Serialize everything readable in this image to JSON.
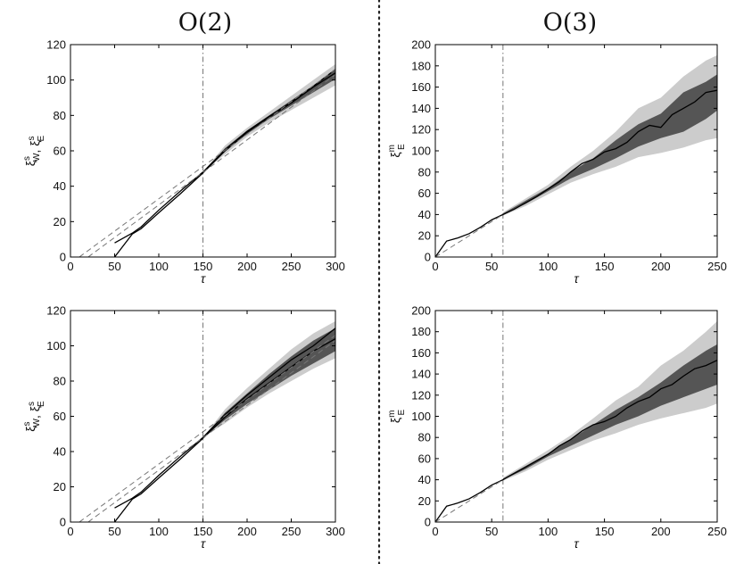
{
  "page": {
    "title_left": "O(2)",
    "title_right": "O(3)"
  },
  "chart_data": [
    {
      "type": "line",
      "panel": "top-left",
      "xlabel": "τ",
      "ylabel_main": "ξ",
      "ylabel_parts": [
        {
          "base": "ξ",
          "sup": "s",
          "sub": "W"
        },
        {
          "base": "ξ",
          "sup": "s",
          "sub": "E"
        }
      ],
      "xlim": [
        0,
        300
      ],
      "ylim": [
        0,
        120
      ],
      "xticks": [
        0,
        50,
        100,
        150,
        200,
        250,
        300
      ],
      "yticks": [
        0,
        20,
        40,
        60,
        80,
        100,
        120
      ],
      "vline_x": 150,
      "bands": [
        {
          "x": [
            150,
            175,
            200,
            225,
            250,
            275,
            300
          ],
          "lower": [
            48,
            58,
            68,
            76,
            83,
            90,
            97
          ],
          "upper": [
            48,
            63,
            73,
            82,
            91,
            100,
            109
          ],
          "color": "#cccccc"
        },
        {
          "x": [
            150,
            175,
            200,
            225,
            250,
            275,
            300
          ],
          "lower": [
            48,
            59.5,
            69.5,
            78,
            85.5,
            93,
            100.5
          ],
          "upper": [
            48,
            61.5,
            71.5,
            80,
            88.5,
            97,
            105.5
          ],
          "color": "#555555"
        }
      ],
      "series": [
        {
          "style": "solid",
          "x": [
            50,
            70,
            80,
            100,
            125,
            150,
            175,
            200,
            225,
            250,
            275,
            300
          ],
          "y": [
            0,
            13,
            16,
            25,
            36,
            47.5,
            60,
            70.5,
            79,
            87,
            96,
            104
          ]
        },
        {
          "style": "solid",
          "x": [
            50,
            70,
            80,
            100,
            125,
            150,
            175,
            200,
            225,
            250,
            275,
            300
          ],
          "y": [
            8,
            13.5,
            17,
            26.5,
            37.5,
            48,
            60.5,
            71,
            79.5,
            87.5,
            96.5,
            106
          ]
        },
        {
          "style": "dashed",
          "x": [
            10,
            300
          ],
          "y": [
            0,
            106
          ]
        },
        {
          "style": "dashed",
          "x": [
            20,
            300
          ],
          "y": [
            0,
            103
          ]
        }
      ]
    },
    {
      "type": "line",
      "panel": "top-right",
      "xlabel": "τ",
      "ylabel_main": "ξ",
      "ylabel_parts": [
        {
          "base": "ξ",
          "sup": "m",
          "sub": "E"
        }
      ],
      "xlim": [
        0,
        250
      ],
      "ylim": [
        0,
        200
      ],
      "xticks": [
        0,
        50,
        100,
        150,
        200,
        250
      ],
      "yticks": [
        0,
        20,
        40,
        60,
        80,
        100,
        120,
        140,
        160,
        180,
        200
      ],
      "vline_x": 60,
      "bands": [
        {
          "x": [
            60,
            80,
            100,
            120,
            140,
            160,
            180,
            200,
            220,
            240,
            250
          ],
          "lower": [
            39,
            48,
            59,
            70,
            78,
            85,
            94,
            98,
            103,
            110,
            112
          ],
          "upper": [
            42,
            55,
            68,
            85,
            100,
            118,
            140,
            150,
            170,
            185,
            190
          ],
          "color": "#cccccc"
        },
        {
          "x": [
            60,
            80,
            100,
            120,
            140,
            160,
            180,
            200,
            220,
            240,
            250
          ],
          "lower": [
            40,
            50,
            62,
            74,
            83,
            93,
            104,
            112,
            118,
            130,
            138
          ],
          "upper": [
            41,
            53,
            65,
            80,
            93,
            110,
            125,
            135,
            155,
            165,
            172
          ],
          "color": "#555555"
        }
      ],
      "series": [
        {
          "style": "solid",
          "x": [
            0,
            10,
            20,
            30,
            40,
            50,
            60,
            70,
            80,
            90,
            100,
            110,
            120,
            130,
            140,
            150,
            160,
            170,
            180,
            190,
            200,
            210,
            220,
            230,
            240,
            250
          ],
          "y": [
            0,
            15,
            18,
            22,
            28,
            35,
            40,
            45,
            51,
            57,
            64,
            71,
            80,
            88,
            92,
            99,
            102,
            108,
            118,
            124,
            122,
            134,
            140,
            146,
            155,
            157
          ]
        },
        {
          "style": "dashed",
          "x": [
            0,
            60
          ],
          "y": [
            0,
            40
          ]
        }
      ]
    },
    {
      "type": "line",
      "panel": "bottom-left",
      "xlabel": "τ",
      "ylabel_main": "ξ",
      "ylabel_parts": [
        {
          "base": "ξ",
          "sup": "s",
          "sub": "W"
        },
        {
          "base": "ξ",
          "sup": "s",
          "sub": "E"
        }
      ],
      "xlim": [
        0,
        300
      ],
      "ylim": [
        0,
        120
      ],
      "xticks": [
        0,
        50,
        100,
        150,
        200,
        250,
        300
      ],
      "yticks": [
        0,
        20,
        40,
        60,
        80,
        100,
        120
      ],
      "vline_x": 150,
      "bands": [
        {
          "x": [
            150,
            175,
            200,
            225,
            250,
            275,
            300
          ],
          "lower": [
            48,
            56,
            65,
            73,
            80,
            87,
            93
          ],
          "upper": [
            48,
            64,
            76,
            87,
            98,
            107,
            114
          ],
          "color": "#cccccc"
        },
        {
          "x": [
            150,
            175,
            200,
            225,
            250,
            275,
            300
          ],
          "lower": [
            48,
            58,
            67,
            75,
            83,
            90,
            97
          ],
          "upper": [
            48,
            62,
            73,
            84,
            94,
            103,
            110
          ],
          "color": "#555555"
        }
      ],
      "series": [
        {
          "style": "solid",
          "x": [
            50,
            70,
            80,
            100,
            125,
            150,
            175,
            200,
            225,
            250,
            275,
            300
          ],
          "y": [
            0,
            13,
            16,
            25,
            36,
            47.5,
            59.5,
            70,
            79,
            88,
            97,
            104
          ]
        },
        {
          "style": "solid",
          "x": [
            50,
            70,
            80,
            100,
            125,
            150,
            175,
            200,
            225,
            250,
            275,
            300
          ],
          "y": [
            8,
            13.5,
            17,
            26.5,
            37.5,
            48,
            61,
            72,
            82,
            92,
            100,
            110
          ]
        },
        {
          "style": "dashed",
          "x": [
            10,
            300
          ],
          "y": [
            0,
            106
          ]
        },
        {
          "style": "dashed",
          "x": [
            20,
            300
          ],
          "y": [
            0,
            103
          ]
        }
      ]
    },
    {
      "type": "line",
      "panel": "bottom-right",
      "xlabel": "τ",
      "ylabel_main": "ξ",
      "ylabel_parts": [
        {
          "base": "ξ",
          "sup": "m",
          "sub": "E"
        }
      ],
      "xlim": [
        0,
        250
      ],
      "ylim": [
        0,
        200
      ],
      "xticks": [
        0,
        50,
        100,
        150,
        200,
        250
      ],
      "yticks": [
        0,
        20,
        40,
        60,
        80,
        100,
        120,
        140,
        160,
        180,
        200
      ],
      "vline_x": 60,
      "bands": [
        {
          "x": [
            60,
            80,
            100,
            120,
            140,
            160,
            180,
            200,
            220,
            240,
            250
          ],
          "lower": [
            39,
            48,
            59,
            68,
            77,
            84,
            92,
            98,
            103,
            108,
            112
          ],
          "upper": [
            42,
            55,
            68,
            82,
            98,
            115,
            128,
            148,
            162,
            180,
            190
          ],
          "color": "#cccccc"
        },
        {
          "x": [
            60,
            80,
            100,
            120,
            140,
            160,
            180,
            200,
            220,
            240,
            250
          ],
          "lower": [
            40,
            50,
            62,
            72,
            82,
            92,
            100,
            110,
            118,
            126,
            130
          ],
          "upper": [
            41,
            53,
            65,
            78,
            92,
            106,
            118,
            132,
            148,
            162,
            168
          ],
          "color": "#555555"
        }
      ],
      "series": [
        {
          "style": "solid",
          "x": [
            0,
            10,
            20,
            30,
            40,
            50,
            60,
            70,
            80,
            90,
            100,
            110,
            120,
            130,
            140,
            150,
            160,
            170,
            180,
            190,
            200,
            210,
            220,
            230,
            240,
            250
          ],
          "y": [
            0,
            15,
            18,
            22,
            28,
            35,
            40,
            46,
            52,
            58,
            64,
            72,
            78,
            86,
            92,
            95,
            100,
            108,
            114,
            118,
            126,
            130,
            138,
            145,
            148,
            153
          ]
        },
        {
          "style": "dashed",
          "x": [
            0,
            60
          ],
          "y": [
            0,
            40
          ]
        }
      ]
    }
  ]
}
